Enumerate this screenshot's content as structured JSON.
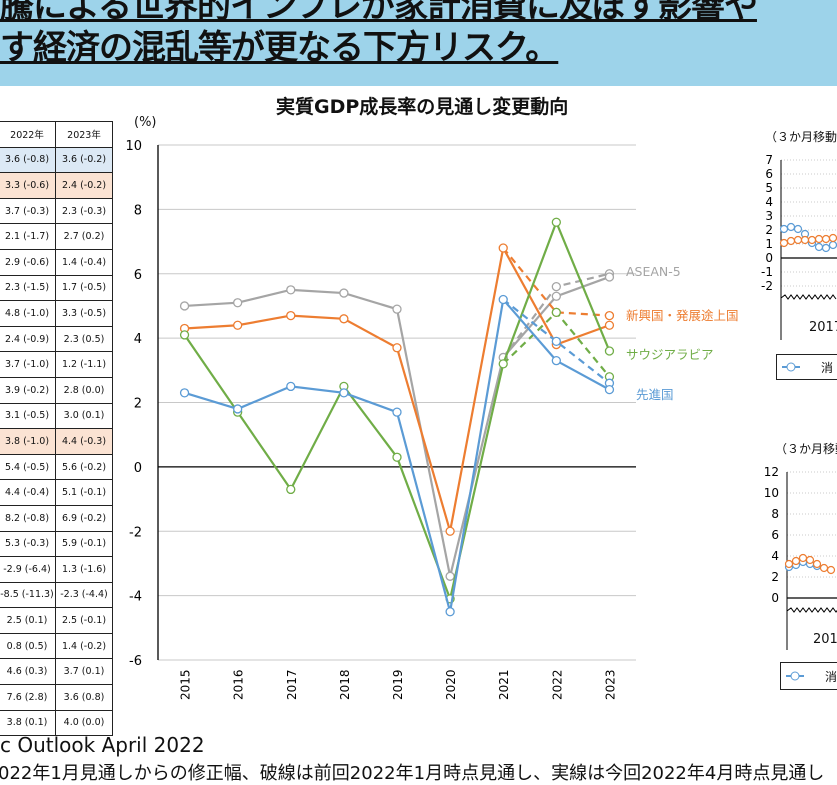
{
  "header": {
    "line1": "騰による世界的インフレが家計消費に及ぼす影響や",
    "line2": "す経済の混乱等が更なる下方リスク。"
  },
  "table": {
    "columns": [
      "2022年",
      "2023年"
    ],
    "rows": [
      {
        "c2022": "3.6 (-0.8)",
        "c2023": "3.6 (-0.2)",
        "highlight": "blue"
      },
      {
        "c2022": "3.3 (-0.6)",
        "c2023": "2.4 (-0.2)",
        "highlight": "orange"
      },
      {
        "c2022": "3.7 (-0.3)",
        "c2023": "2.3 (-0.3)",
        "highlight": ""
      },
      {
        "c2022": "2.1 (-1.7)",
        "c2023": "2.7 (0.2)",
        "highlight": ""
      },
      {
        "c2022": "2.9 (-0.6)",
        "c2023": "1.4 (-0.4)",
        "highlight": ""
      },
      {
        "c2022": "2.3 (-1.5)",
        "c2023": "1.7 (-0.5)",
        "highlight": ""
      },
      {
        "c2022": "4.8 (-1.0)",
        "c2023": "3.3 (-0.5)",
        "highlight": ""
      },
      {
        "c2022": "2.4 (-0.9)",
        "c2023": "2.3 (0.5)",
        "highlight": ""
      },
      {
        "c2022": "3.7 (-1.0)",
        "c2023": "1.2 (-1.1)",
        "highlight": ""
      },
      {
        "c2022": "3.9 (-0.2)",
        "c2023": "2.8 (0.0)",
        "highlight": ""
      },
      {
        "c2022": "3.1 (-0.5)",
        "c2023": "3.0 (0.1)",
        "highlight": ""
      },
      {
        "c2022": "3.8 (-1.0)",
        "c2023": "4.4 (-0.3)",
        "highlight": "orange"
      },
      {
        "c2022": "5.4 (-0.5)",
        "c2023": "5.6 (-0.2)",
        "highlight": ""
      },
      {
        "c2022": "4.4 (-0.4)",
        "c2023": "5.1 (-0.1)",
        "highlight": ""
      },
      {
        "c2022": "8.2 (-0.8)",
        "c2023": "6.9 (-0.2)",
        "highlight": ""
      },
      {
        "c2022": "5.3 (-0.3)",
        "c2023": "5.9 (-0.1)",
        "highlight": ""
      },
      {
        "c2022": "-2.9 (-6.4)",
        "c2023": "1.3 (-1.6)",
        "highlight": ""
      },
      {
        "c2022": "-8.5 (-11.3)",
        "c2023": "-2.3 (-4.4)",
        "highlight": ""
      },
      {
        "c2022": "2.5 (0.1)",
        "c2023": "2.5 (-0.1)",
        "highlight": ""
      },
      {
        "c2022": "0.8 (0.5)",
        "c2023": "1.4 (-0.2)",
        "highlight": ""
      },
      {
        "c2022": "4.6 (0.3)",
        "c2023": "3.7 (0.1)",
        "highlight": ""
      },
      {
        "c2022": "7.6 (2.8)",
        "c2023": "3.6 (0.8)",
        "highlight": ""
      },
      {
        "c2022": "3.8 (0.1)",
        "c2023": "4.0 (0.0)",
        "highlight": ""
      }
    ]
  },
  "chart_data": {
    "type": "line",
    "title": "実質GDP成長率の見通し変更動向",
    "ylabel": "(%)",
    "ylim": [
      -6,
      10
    ],
    "yticks": [
      "-6",
      "-4",
      "-2",
      "0",
      "2",
      "4",
      "6",
      "8",
      "10"
    ],
    "x": [
      "2015",
      "2016",
      "2017",
      "2018",
      "2019",
      "2020",
      "2021",
      "2022",
      "2023"
    ],
    "grid": true,
    "series": [
      {
        "name": "ASEAN-5",
        "color": "#a5a5a5",
        "values": [
          5.0,
          5.1,
          5.5,
          5.4,
          4.9,
          -3.4,
          3.4,
          5.3,
          5.9
        ],
        "previous": {
          "2022": 5.6,
          "2023": 6.0
        }
      },
      {
        "name": "新興国・発展途上国",
        "color": "#ed7d31",
        "values": [
          4.3,
          4.4,
          4.7,
          4.6,
          3.7,
          -2.0,
          6.8,
          3.8,
          4.4
        ],
        "previous": {
          "2022": 4.8,
          "2023": 4.7
        }
      },
      {
        "name": "サウジアラビア",
        "color": "#70ad47",
        "values": [
          4.1,
          1.7,
          -0.7,
          2.5,
          0.3,
          -4.1,
          3.2,
          7.6,
          3.6
        ],
        "previous": {
          "2022": 4.8,
          "2023": 2.8
        }
      },
      {
        "name": "先進国",
        "color": "#5b9bd5",
        "values": [
          2.3,
          1.8,
          2.5,
          2.3,
          1.7,
          -4.5,
          5.2,
          3.3,
          2.4
        ],
        "previous": {
          "2022": 3.9,
          "2023": 2.6
        }
      }
    ]
  },
  "mini_top": {
    "title": "（３か月移動",
    "ticks": [
      "7",
      "6",
      "5",
      "4",
      "3",
      "2",
      "1",
      "0",
      "-1",
      "-2"
    ],
    "xlabel": "2017",
    "legend": "消"
  },
  "mini_bottom": {
    "title": "（３か月移動",
    "ticks": [
      "12",
      "10",
      "8",
      "6",
      "4",
      "2",
      "0"
    ],
    "xlabel": "201",
    "legend": "消"
  },
  "footer": {
    "source": "c Outlook April 2022",
    "note": "022年1月見通しからの修正幅、破線は前回2022年1月時点見通し、実線は今回2022年4月時点見通し"
  }
}
